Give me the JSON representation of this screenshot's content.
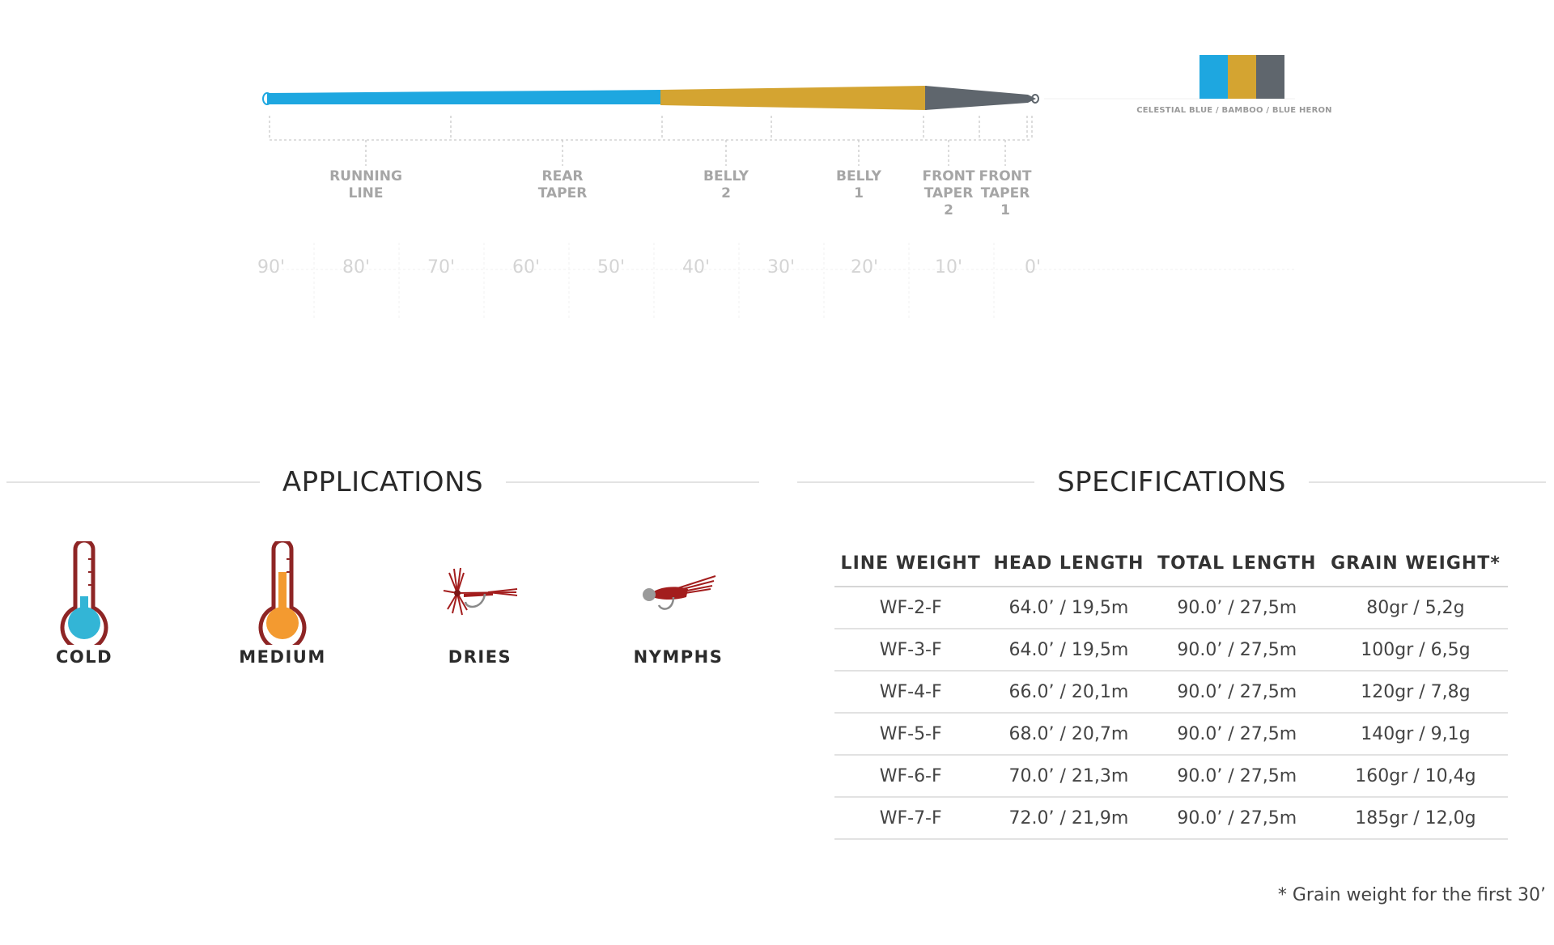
{
  "taper": {
    "segments": [
      {
        "label": "RUNNING\nLINE"
      },
      {
        "label": "REAR\nTAPER"
      },
      {
        "label": "BELLY\n2"
      },
      {
        "label": "BELLY\n1"
      },
      {
        "label": "FRONT\nTAPER\n2"
      },
      {
        "label": "FRONT\nTAPER\n1"
      }
    ],
    "axis_ticks": [
      "90'",
      "80'",
      "70'",
      "60'",
      "50'",
      "40'",
      "30'",
      "20'",
      "10'",
      "0'"
    ],
    "colors": {
      "celestial_blue": "#1ea7e0",
      "bamboo": "#d4a431",
      "blue_heron": "#5f666d"
    },
    "color_caption": "CELESTIAL BLUE / BAMBOO / BLUE HERON"
  },
  "applications": {
    "title": "APPLICATIONS",
    "items": [
      {
        "label": "COLD",
        "icon": "thermometer-cold-icon"
      },
      {
        "label": "MEDIUM",
        "icon": "thermometer-medium-icon"
      },
      {
        "label": "DRIES",
        "icon": "dry-fly-icon"
      },
      {
        "label": "NYMPHS",
        "icon": "nymph-fly-icon"
      }
    ]
  },
  "specifications": {
    "title": "SPECIFICATIONS",
    "headers": [
      "LINE WEIGHT",
      "HEAD LENGTH",
      "TOTAL LENGTH",
      "GRAIN WEIGHT*"
    ],
    "rows": [
      [
        "WF-2-F",
        "64.0’ / 19,5m",
        "90.0’ / 27,5m",
        "80gr / 5,2g"
      ],
      [
        "WF-3-F",
        "64.0’ / 19,5m",
        "90.0’ / 27,5m",
        "100gr / 6,5g"
      ],
      [
        "WF-4-F",
        "66.0’ / 20,1m",
        "90.0’ / 27,5m",
        "120gr / 7,8g"
      ],
      [
        "WF-5-F",
        "68.0’ / 20,7m",
        "90.0’ / 27,5m",
        "140gr / 9,1g"
      ],
      [
        "WF-6-F",
        "70.0’ / 21,3m",
        "90.0’ / 27,5m",
        "160gr / 10,4g"
      ],
      [
        "WF-7-F",
        "72.0’ / 21,9m",
        "90.0’ / 27,5m",
        "185gr / 12,0g"
      ]
    ],
    "footnote": "* Grain weight for the first 30’"
  }
}
